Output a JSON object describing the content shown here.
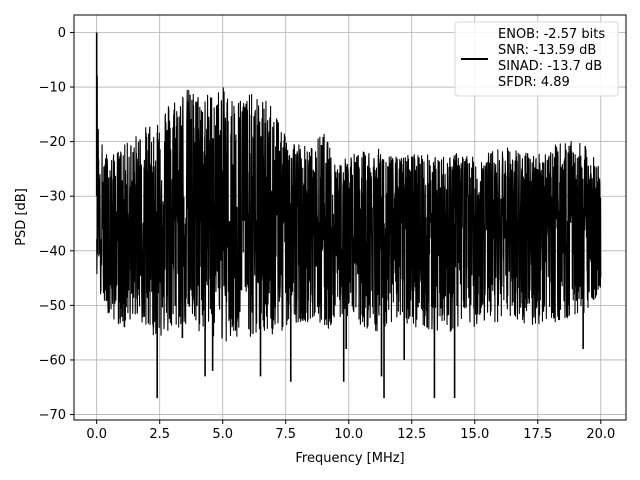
{
  "chart_data": {
    "type": "line",
    "title": "",
    "xlabel": "Frequency [MHz]",
    "ylabel": "PSD [dB]",
    "xlim": [
      -0.9,
      21.0
    ],
    "ylim": [
      -71,
      3.2
    ],
    "xticks": [
      0.0,
      2.5,
      5.0,
      7.5,
      10.0,
      12.5,
      15.0,
      17.5,
      20.0
    ],
    "xtick_labels": [
      "0.0",
      "2.5",
      "5.0",
      "7.5",
      "10.0",
      "12.5",
      "15.0",
      "17.5",
      "20.0"
    ],
    "yticks": [
      0,
      -10,
      -20,
      -30,
      -40,
      -50,
      -60,
      -70
    ],
    "ytick_labels": [
      "0",
      "−10",
      "−20",
      "−30",
      "−40",
      "−50",
      "−60",
      "−70"
    ],
    "grid": true,
    "legend_position": "top-right",
    "line_color": "#000000",
    "legend": [
      "ENOB: -2.57 bits",
      "SNR: -13.59 dB",
      "SINAD: -13.7 dB",
      "SFDR: 4.89"
    ],
    "series": [
      {
        "x": [
          0.0,
          0.05,
          0.1,
          0.2,
          0.5,
          1.0,
          1.5,
          2.0,
          2.5,
          3.0,
          3.5,
          4.0,
          4.5,
          5.0,
          5.5,
          6.0,
          6.5,
          7.0,
          7.5,
          8.0,
          8.5,
          9.0,
          9.5,
          10.0,
          10.5,
          11.0,
          11.5,
          12.0,
          12.5,
          13.0,
          13.5,
          14.0,
          14.5,
          15.0,
          15.5,
          16.0,
          16.5,
          17.0,
          17.5,
          18.0,
          18.5,
          19.0,
          19.5,
          20.0
        ],
        "upper": [
          0.0,
          -14,
          -23,
          -20,
          -23,
          -21,
          -19,
          -17,
          -14,
          -12,
          -10,
          -11,
          -11,
          -10,
          -12,
          -11,
          -12,
          -13,
          -18,
          -20,
          -21,
          -18,
          -24,
          -22,
          -22,
          -21,
          -22,
          -23,
          -22,
          -22,
          -23,
          -22,
          -22,
          -23,
          -22,
          -21,
          -21,
          -22,
          -22,
          -21,
          -20,
          -20,
          -21,
          -25
        ],
        "lower": [
          -45,
          -40,
          -50,
          -48,
          -52,
          -54,
          -52,
          -55,
          -56,
          -55,
          -54,
          -55,
          -56,
          -57,
          -57,
          -56,
          -55,
          -56,
          -54,
          -53,
          -53,
          -55,
          -53,
          -53,
          -54,
          -55,
          -54,
          -53,
          -54,
          -54,
          -55,
          -55,
          -54,
          -54,
          -53,
          -53,
          -54,
          -54,
          -54,
          -53,
          -53,
          -52,
          -51,
          -47
        ],
        "mid": [
          -30,
          -28,
          -35,
          -34,
          -36,
          -35,
          -35,
          -35,
          -34,
          -33,
          -33,
          -33,
          -34,
          -34,
          -34,
          -33,
          -34,
          -35,
          -36,
          -36,
          -36,
          -37,
          -35,
          -35,
          -35,
          -35,
          -35,
          -35,
          -35,
          -35,
          -35,
          -35,
          -35,
          -35,
          -35,
          -35,
          -35,
          -35,
          -35,
          -35,
          -35,
          -35,
          -35,
          -35
        ],
        "spikes": [
          {
            "x": 0.0,
            "y": 0
          },
          {
            "x": 2.4,
            "y": -67
          },
          {
            "x": 3.4,
            "y": -56
          },
          {
            "x": 4.3,
            "y": -63
          },
          {
            "x": 4.6,
            "y": -62
          },
          {
            "x": 6.5,
            "y": -63
          },
          {
            "x": 7.7,
            "y": -64
          },
          {
            "x": 9.8,
            "y": -64
          },
          {
            "x": 11.3,
            "y": -63
          },
          {
            "x": 11.4,
            "y": -67
          },
          {
            "x": 13.4,
            "y": -67
          },
          {
            "x": 14.2,
            "y": -67
          },
          {
            "x": 1.1,
            "y": -54
          },
          {
            "x": 2.25,
            "y": -54
          },
          {
            "x": 9.9,
            "y": -58
          },
          {
            "x": 12.2,
            "y": -60
          },
          {
            "x": 19.3,
            "y": -58
          }
        ]
      }
    ]
  }
}
